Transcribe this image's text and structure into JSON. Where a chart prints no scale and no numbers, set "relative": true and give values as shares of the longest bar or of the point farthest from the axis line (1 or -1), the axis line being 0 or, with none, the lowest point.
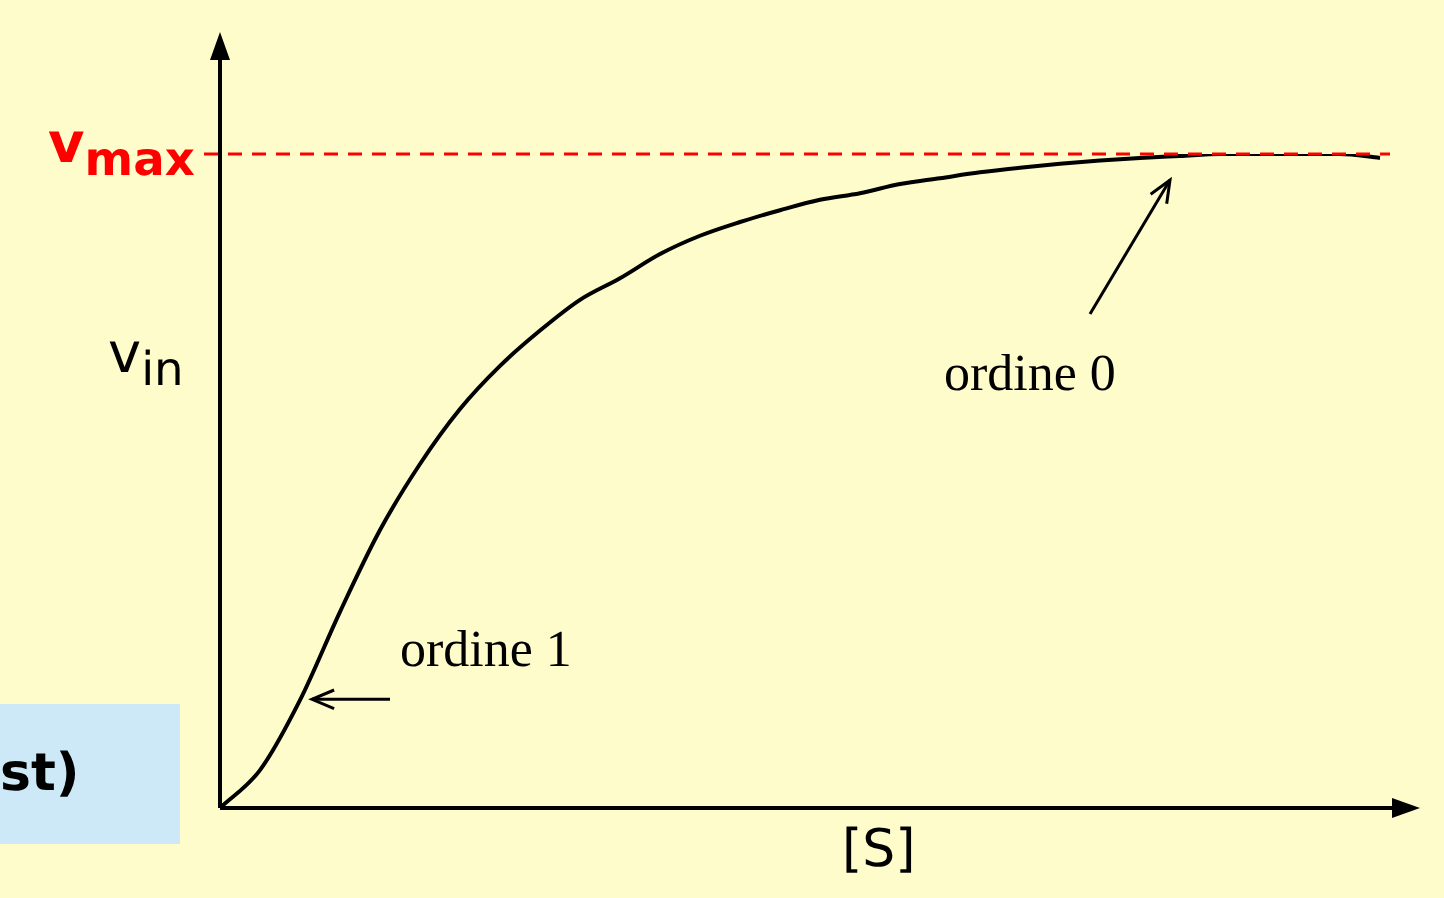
{
  "chart_data": {
    "type": "line",
    "relative": true,
    "xlabel": "[S]",
    "ylabel": "v$_{in}$",
    "categories": [
      null,
      null,
      null,
      null,
      null,
      null,
      null,
      null,
      null,
      null,
      null,
      null,
      null,
      null,
      null,
      null,
      null,
      null,
      null,
      null,
      null,
      null,
      null,
      null,
      null,
      null,
      null,
      null,
      null,
      null
    ],
    "values": [
      0,
      0.058,
      0.165,
      0.3,
      0.425,
      0.526,
      0.61,
      0.676,
      0.73,
      0.777,
      0.81,
      0.847,
      0.875,
      0.896,
      0.914,
      0.93,
      0.94,
      0.954,
      0.963,
      0.972,
      0.979,
      0.985,
      0.99,
      0.994,
      0.997,
      1,
      1,
      1,
      1,
      0.994
    ],
    "color": "#000000",
    "marker": "none",
    "ref_lines": [
      {
        "axis": "y",
        "value": 1,
        "label": "v$_{max}$",
        "color": "#ff0000",
        "line_style": "dashed"
      }
    ],
    "annotations": [
      "ordine 1",
      "ordine 0",
      "st)"
    ]
  }
}
